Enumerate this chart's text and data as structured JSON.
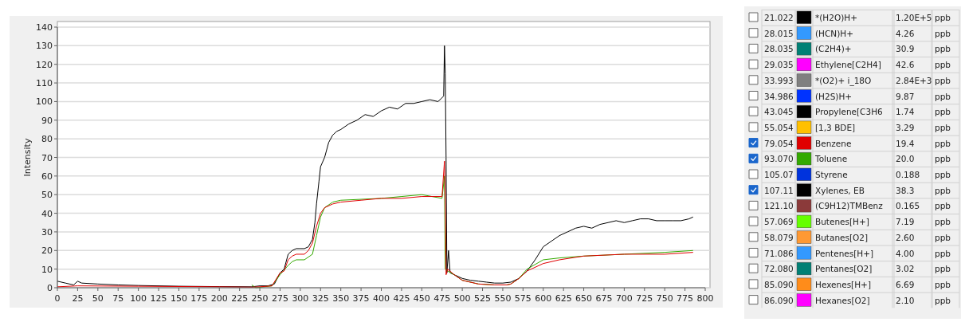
{
  "chart_data": {
    "type": "line",
    "ylabel": "Intensity",
    "xlim": [
      0,
      800
    ],
    "ylim": [
      0,
      140
    ],
    "xticks": [
      0,
      25,
      50,
      75,
      100,
      125,
      150,
      175,
      200,
      225,
      250,
      275,
      300,
      325,
      350,
      375,
      400,
      425,
      450,
      475,
      500,
      525,
      550,
      575,
      600,
      625,
      650,
      675,
      700,
      725,
      750,
      775,
      800
    ],
    "yticks": [
      0,
      10,
      20,
      30,
      40,
      50,
      60,
      70,
      80,
      90,
      100,
      110,
      120,
      130,
      140
    ],
    "grid": "y",
    "legend": "right",
    "marker": "none",
    "line_style": "solid",
    "annotations": [
      "21.022",
      "1.20E+5",
      "ppb",
      "28.015",
      "4.26",
      "ppb",
      "28.035",
      "30.9",
      "ppb",
      "29.035",
      "42.6",
      "ppb",
      "33.993",
      "2.84E+3",
      "ppb",
      "34.986",
      "9.87",
      "ppb",
      "43.045",
      "1.74",
      "ppb",
      "55.054",
      "3.29",
      "ppb",
      "79.054",
      "19.4",
      "ppb",
      "93.070",
      "20.0",
      "ppb",
      "105.07",
      "0.188",
      "ppb",
      "107.11",
      "38.3",
      "ppb",
      "121.10",
      "0.165",
      "ppb",
      "57.069",
      "7.19",
      "ppb",
      "58.079",
      "2.60",
      "ppb",
      "71.086",
      "4.00",
      "ppb",
      "72.080",
      "3.02",
      "ppb",
      "85.090",
      "6.69",
      "ppb",
      "86.090",
      "2.10",
      "ppb"
    ],
    "series": [
      {
        "name": "*(H2O)H+",
        "color": "#000000"
      },
      {
        "name": "(HCN)H+",
        "color": "#3399ff"
      },
      {
        "name": "(C2H4)+",
        "color": "#008075"
      },
      {
        "name": "Ethylene[C2H4]",
        "color": "#ff00ff"
      },
      {
        "name": "*(O2)+ i_18O",
        "color": "#808080"
      },
      {
        "name": "(H2S)H+",
        "color": "#0033ff"
      },
      {
        "name": "Propylene[C3H6",
        "color": "#000000"
      },
      {
        "name": "[1,3 BDE]",
        "color": "#ffc000"
      },
      {
        "name": "Benzene",
        "color": "#e00000",
        "x": [
          0,
          25,
          100,
          200,
          240,
          250,
          265,
          275,
          280,
          285,
          290,
          295,
          300,
          305,
          310,
          315,
          320,
          325,
          330,
          340,
          350,
          375,
          400,
          425,
          450,
          475,
          478,
          479,
          480,
          482,
          490,
          500,
          520,
          540,
          555,
          560,
          570,
          580,
          600,
          620,
          650,
          700,
          750,
          785
        ],
        "values": [
          0.5,
          1,
          0.8,
          0.5,
          0.3,
          0.5,
          1,
          8,
          9,
          15,
          17,
          18,
          18,
          18,
          20,
          24,
          33,
          40,
          43,
          45,
          46,
          47,
          48,
          48,
          49,
          49,
          68,
          50,
          7,
          10,
          7,
          4,
          2,
          1.5,
          1.5,
          2,
          5,
          9,
          13,
          15,
          17,
          18,
          18,
          19
        ]
      },
      {
        "name": "Toluene",
        "color": "#33aa00",
        "x": [
          240,
          245,
          265,
          275,
          285,
          290,
          295,
          305,
          315,
          320,
          325,
          330,
          340,
          350,
          400,
          425,
          450,
          475,
          478,
          479,
          482,
          490,
          500,
          520,
          540,
          555,
          560,
          570,
          580,
          600,
          620,
          650,
          700,
          750,
          785
        ],
        "values": [
          1.5,
          0,
          1,
          7,
          12,
          14,
          15,
          15,
          18,
          28,
          38,
          43,
          46,
          47,
          48,
          49,
          50,
          48,
          60,
          10,
          9,
          7,
          4,
          2,
          1.5,
          1.5,
          2,
          5,
          10,
          15,
          16,
          17,
          18,
          19,
          20
        ]
      },
      {
        "name": "Styrene",
        "color": "#0033dd"
      },
      {
        "name": "Xylenes, EB",
        "color": "#000000",
        "x": [
          0,
          10,
          20,
          25,
          30,
          50,
          75,
          100,
          150,
          200,
          240,
          250,
          260,
          268,
          275,
          280,
          285,
          290,
          295,
          300,
          305,
          310,
          315,
          318,
          320,
          323,
          325,
          330,
          335,
          340,
          345,
          350,
          360,
          370,
          380,
          390,
          400,
          410,
          420,
          430,
          440,
          450,
          460,
          470,
          475,
          477,
          478,
          479,
          480,
          481,
          483,
          485,
          490,
          500,
          510,
          520,
          530,
          540,
          550,
          560,
          570,
          580,
          590,
          600,
          610,
          620,
          630,
          640,
          650,
          660,
          670,
          680,
          690,
          700,
          710,
          720,
          730,
          740,
          750,
          760,
          770,
          780,
          785
        ],
        "values": [
          3.5,
          2.5,
          1.5,
          3.5,
          2.5,
          2,
          1.5,
          1.2,
          0.8,
          0.6,
          0.5,
          1,
          1,
          2,
          8,
          10,
          18,
          20,
          21,
          21,
          21,
          22,
          26,
          35,
          45,
          57,
          65,
          70,
          78,
          82,
          84,
          85,
          88,
          90,
          93,
          92,
          95,
          97,
          96,
          99,
          99,
          100,
          101,
          100,
          102,
          103,
          130,
          115,
          70,
          8,
          20,
          8,
          7,
          5,
          4,
          3.5,
          3,
          2.5,
          2.5,
          3,
          5,
          9,
          15,
          22,
          25,
          28,
          30,
          32,
          33,
          32,
          34,
          35,
          36,
          35,
          36,
          37,
          37,
          36,
          36,
          36,
          36,
          37,
          38
        ]
      },
      {
        "name": "(C9H12)TMBenz",
        "color": "#8b3a3a"
      },
      {
        "name": "Butenes[H+]",
        "color": "#66ff00"
      },
      {
        "name": "Butanes[O2]",
        "color": "#ff9933"
      },
      {
        "name": "Pentenes[H+]",
        "color": "#3399ff"
      },
      {
        "name": "Pentanes[O2]",
        "color": "#008075"
      },
      {
        "name": "Hexenes[H+]",
        "color": "#ff8c1a"
      },
      {
        "name": "Hexanes[O2]",
        "color": "#ff00ff"
      }
    ]
  }
}
